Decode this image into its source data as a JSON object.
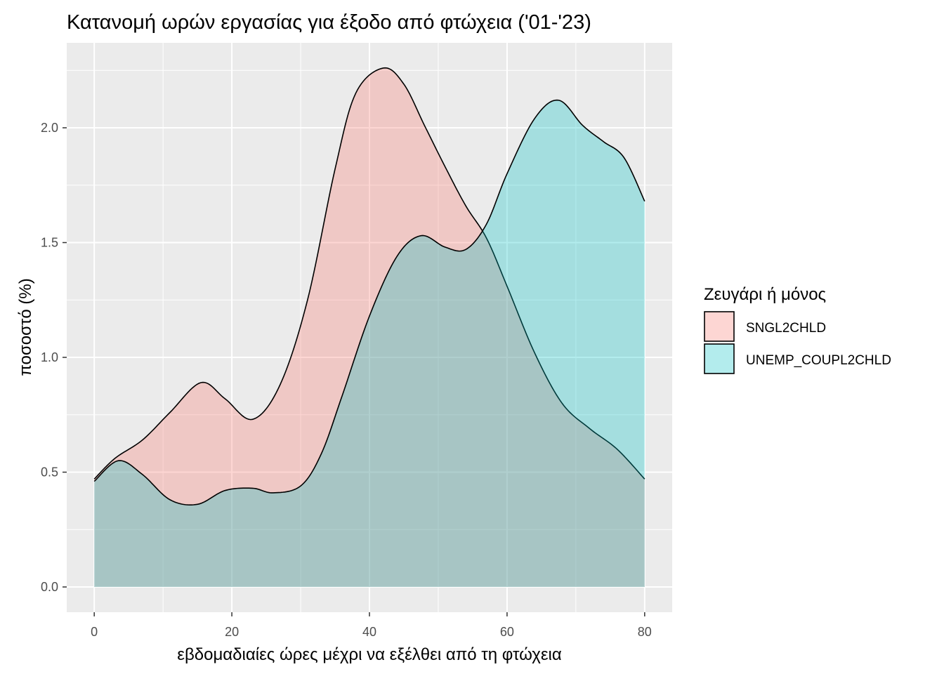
{
  "chart_data": {
    "type": "area",
    "title": "Κατανομή ωρών εργασίας για έξοδο από φτώχεια ('01-'23)",
    "xlabel": "εβδομαδιαίες ώρες μέχρι να εξέλθει από τη φτώχεια",
    "ylabel": "ποσοστό (%)",
    "xlim": [
      -4,
      84
    ],
    "ylim": [
      -0.11,
      2.37
    ],
    "x_ticks": [
      0,
      20,
      40,
      60,
      80
    ],
    "x_tick_labels": [
      "0",
      "20",
      "40",
      "60",
      "80"
    ],
    "y_ticks": [
      0,
      0.5,
      1,
      1.5,
      2
    ],
    "y_tick_labels": [
      "0.0",
      "0.5",
      "1.0",
      "1.5",
      "2.0"
    ],
    "grid": true,
    "legend_title": "Ζευγάρι ή μόνος",
    "legend_position": "right",
    "series": [
      {
        "name": "SNGL2CHLD",
        "color": "#F8766D",
        "x": [
          0,
          3,
          7,
          11,
          15.5,
          19,
          23,
          27,
          31,
          35,
          38,
          42,
          45,
          48,
          51,
          54,
          57,
          60,
          64,
          68,
          72,
          76,
          80
        ],
        "y": [
          0.47,
          0.56,
          0.64,
          0.76,
          0.89,
          0.82,
          0.73,
          0.88,
          1.25,
          1.82,
          2.15,
          2.26,
          2.19,
          2.01,
          1.83,
          1.66,
          1.52,
          1.31,
          1.02,
          0.8,
          0.69,
          0.6,
          0.47
        ]
      },
      {
        "name": "UNEMP_COUPL2CHLD",
        "color": "#00BFC4",
        "x": [
          0,
          3.5,
          7,
          11,
          15,
          19,
          23,
          26,
          30,
          33,
          36,
          40,
          44,
          47.5,
          51,
          54,
          57,
          60,
          64,
          67.5,
          71,
          74,
          77,
          80
        ],
        "y": [
          0.46,
          0.55,
          0.49,
          0.38,
          0.36,
          0.42,
          0.43,
          0.41,
          0.44,
          0.58,
          0.83,
          1.18,
          1.44,
          1.53,
          1.48,
          1.47,
          1.58,
          1.8,
          2.04,
          2.12,
          2.01,
          1.94,
          1.87,
          1.68
        ]
      }
    ]
  }
}
